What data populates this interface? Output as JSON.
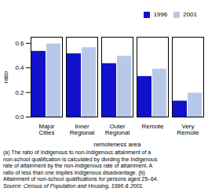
{
  "chart_data": {
    "type": "bar",
    "categories": [
      "Major\nCities",
      "Inner\nRegional",
      "Outer\nRegional",
      "Remote",
      "Very\nRemote"
    ],
    "series": [
      {
        "name": "1996",
        "color": "#1111cc",
        "values": [
          0.535,
          0.515,
          0.435,
          0.33,
          0.13
        ]
      },
      {
        "name": "2001",
        "color": "#b8c8e8",
        "values": [
          0.595,
          0.565,
          0.495,
          0.39,
          0.195
        ]
      }
    ],
    "xlabel": "remoteness area",
    "ylabel": "ratio",
    "ylim": [
      0,
      0.65
    ],
    "yticks": [
      {
        "value": 0,
        "label": "0.0"
      },
      0.2,
      0.4,
      0.6
    ],
    "legend": "upper right",
    "grid": false,
    "annotations": [
      "(a) The ratio of Indigenous to non-Indigenous attainment of a",
      "non-school qualification is calculated by dividing the Indigenous",
      "rate of attainment by the non-Indigenous rate of attainment. A",
      "ratio of less than one implies Indigenous disadvantage. (b)",
      "Attainment of non-school qualifications for persons aged 25–64.",
      "Source: Census of Population and Housing, 1996 & 2001."
    ]
  }
}
